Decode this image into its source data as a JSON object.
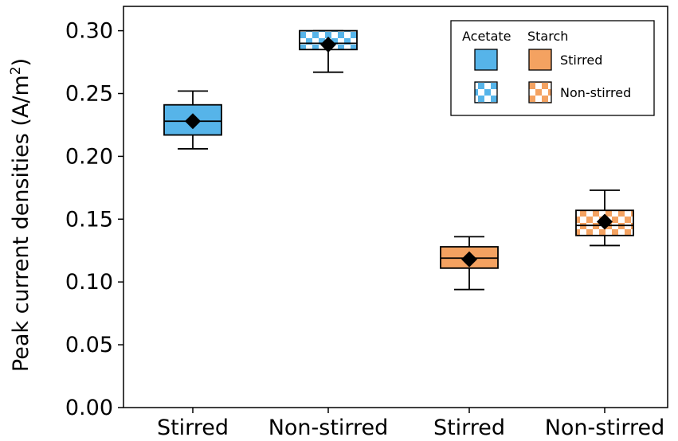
{
  "colors": {
    "acetate": "#56b4e9",
    "starch": "#f4a261",
    "line": "#000000",
    "background": "#ffffff"
  },
  "chart_data": {
    "type": "box",
    "title": "",
    "xlabel": "",
    "ylabel": "Peak current densities (A/m",
    "ylabel_superscript": "2",
    "ylabel_suffix": ")",
    "ylim": [
      0.0,
      0.32
    ],
    "yticks": [
      "0.00",
      "0.05",
      "0.10",
      "0.15",
      "0.20",
      "0.25",
      "0.30"
    ],
    "ytick_values": [
      0.0,
      0.05,
      0.1,
      0.15,
      0.2,
      0.25,
      0.3
    ],
    "categories": [
      "Stirred",
      "Non-stirred",
      "Stirred",
      "Non-stirred"
    ],
    "boxes": [
      {
        "substrate": "Acetate",
        "condition": "Stirred",
        "fill": "solid",
        "whisker_low": 0.206,
        "q1": 0.217,
        "median": 0.228,
        "q3": 0.241,
        "whisker_high": 0.252,
        "mean": 0.228
      },
      {
        "substrate": "Acetate",
        "condition": "Non-stirred",
        "fill": "checker",
        "whisker_low": 0.267,
        "q1": 0.285,
        "median": 0.29,
        "q3": 0.3,
        "whisker_high": 0.3,
        "mean": 0.289
      },
      {
        "substrate": "Starch",
        "condition": "Stirred",
        "fill": "solid",
        "whisker_low": 0.094,
        "q1": 0.111,
        "median": 0.119,
        "q3": 0.128,
        "whisker_high": 0.136,
        "mean": 0.118
      },
      {
        "substrate": "Starch",
        "condition": "Non-stirred",
        "fill": "checker",
        "whisker_low": 0.129,
        "q1": 0.137,
        "median": 0.145,
        "q3": 0.157,
        "whisker_high": 0.173,
        "mean": 0.148
      }
    ],
    "legend": {
      "position": "top-right",
      "headers": [
        "Acetate",
        "Starch"
      ],
      "entries": [
        {
          "label": "Stirred",
          "fill": "solid"
        },
        {
          "label": "Non-stirred",
          "fill": "checker"
        }
      ]
    }
  }
}
